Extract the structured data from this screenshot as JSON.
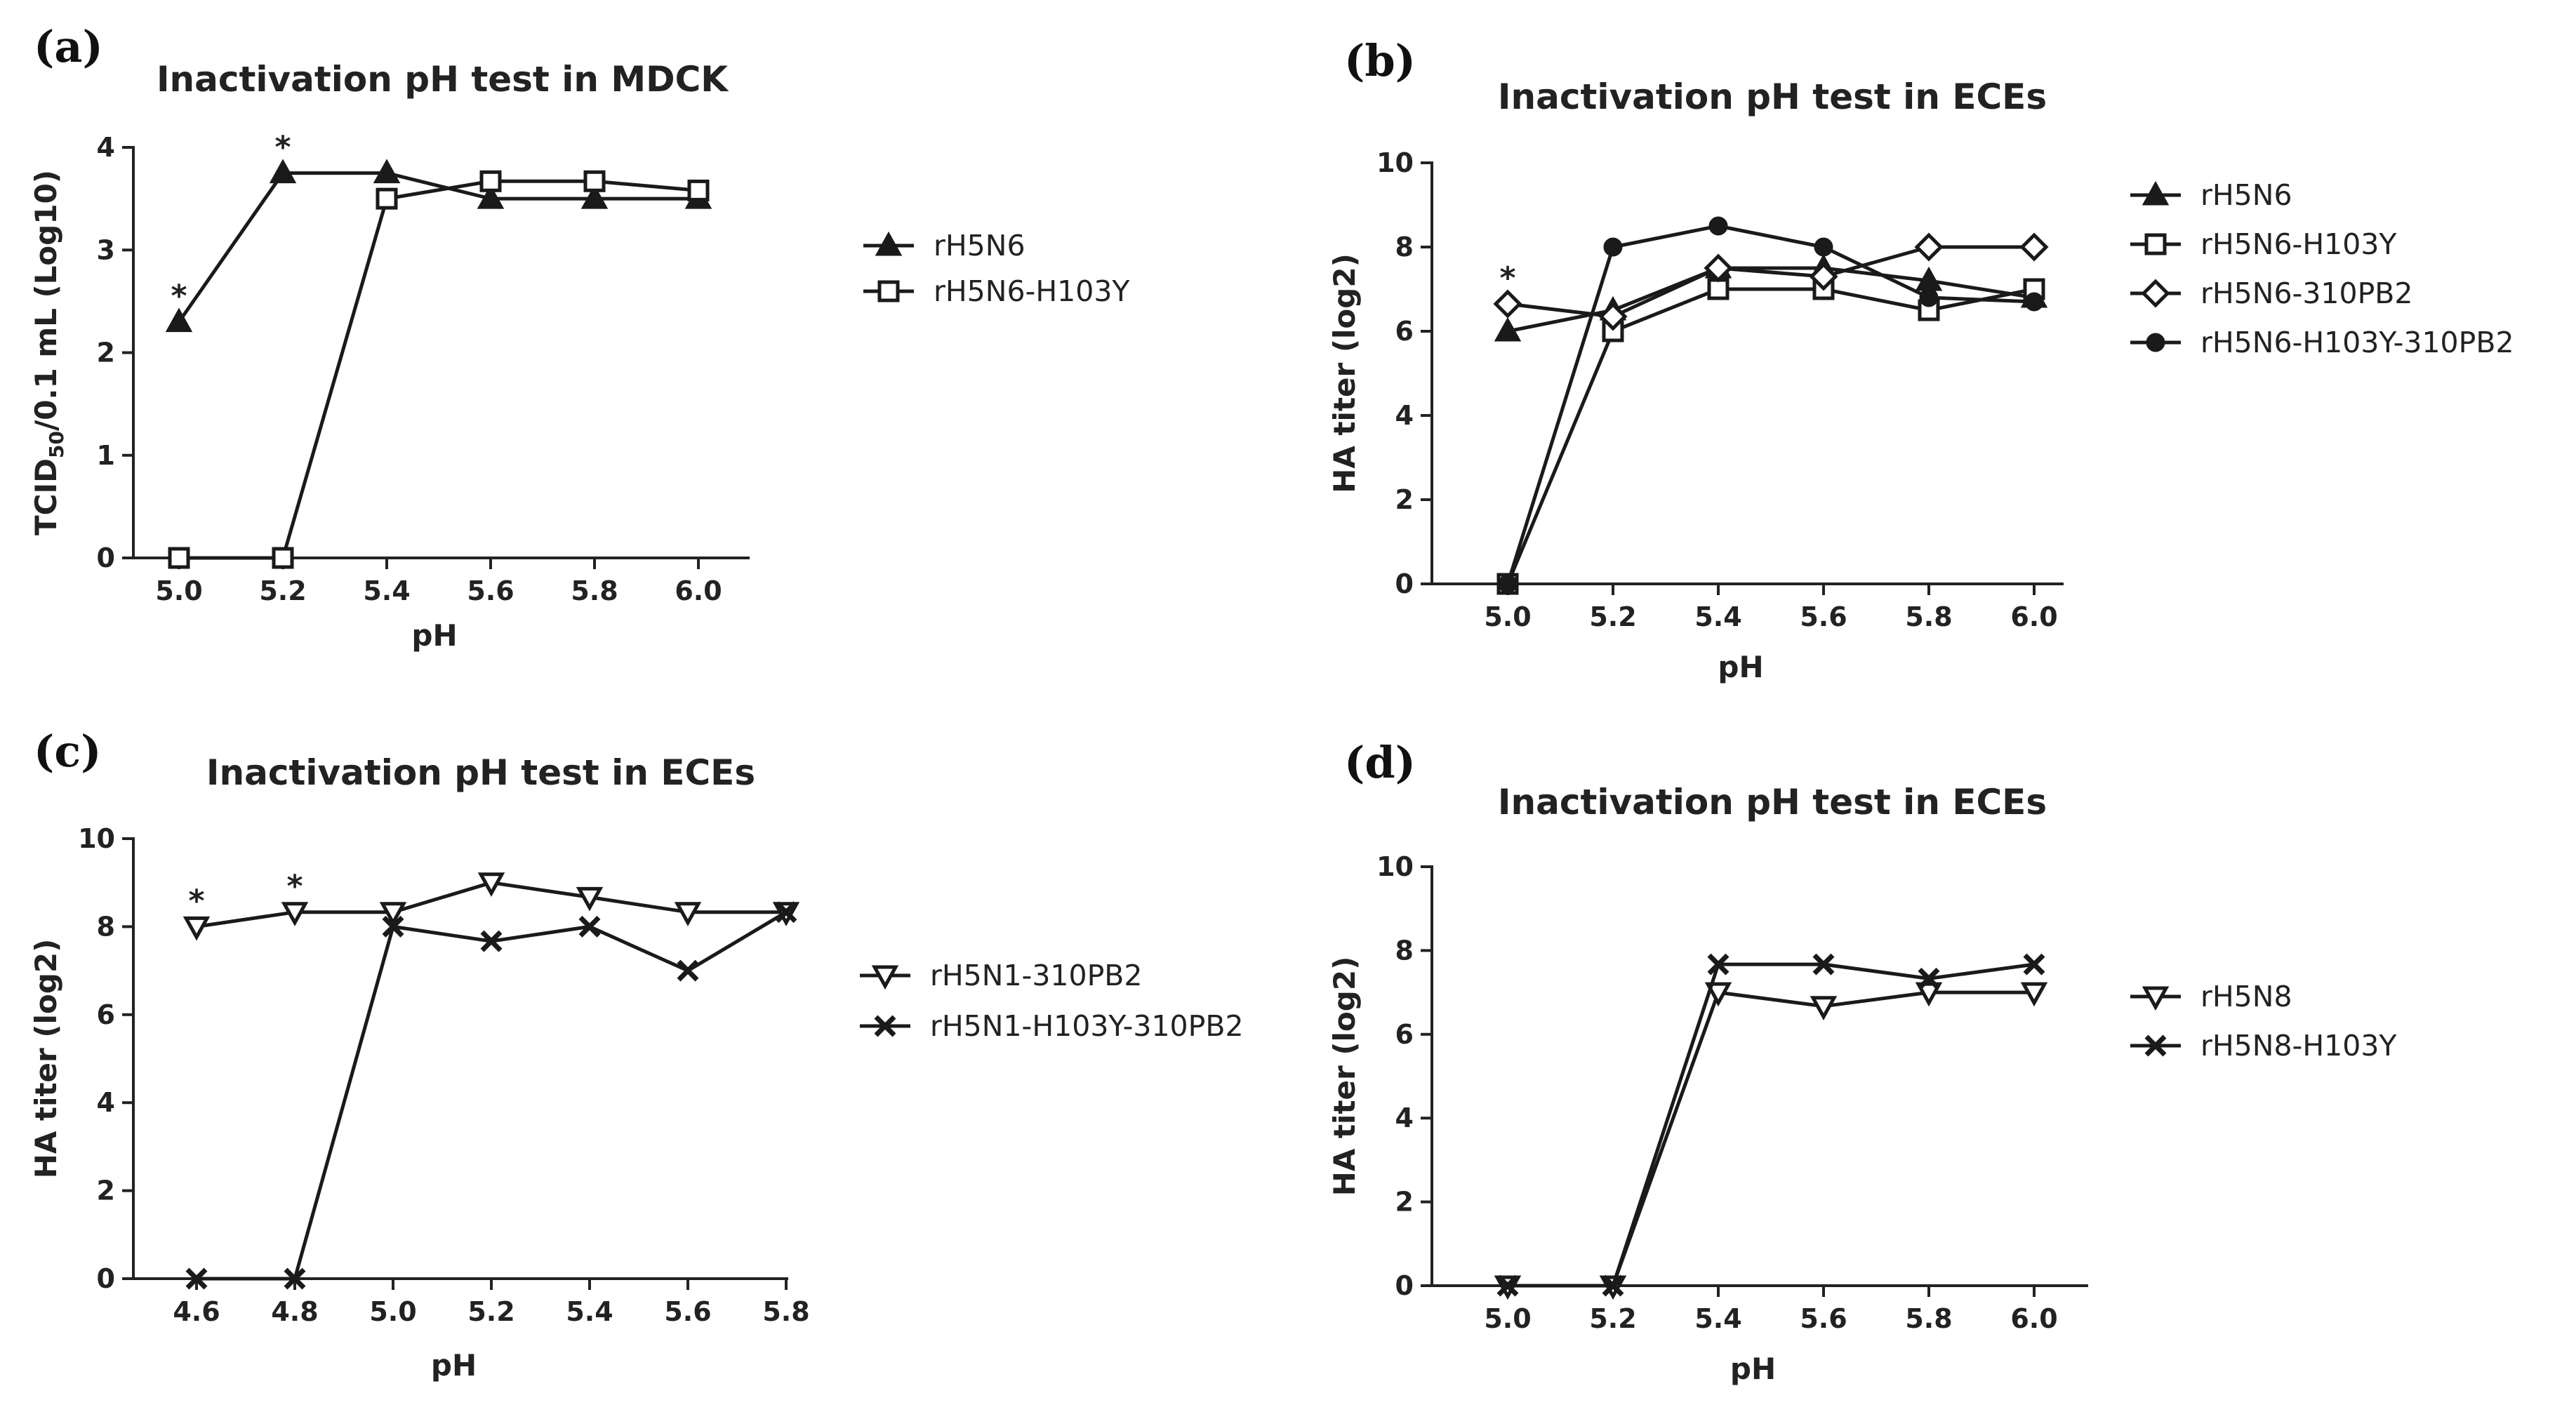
{
  "colors": {
    "ink": "#1a1a1a",
    "background": "#ffffff"
  },
  "chart_data": [
    {
      "panel": "(a)",
      "type": "line",
      "title": "Inactivation pH test in MDCK",
      "xlabel": "pH",
      "ylabel_main": "TCID",
      "ylabel_sub": "50",
      "ylabel_rest": "/0.1 mL (Log10)",
      "ylim": [
        0,
        4
      ],
      "yticks": [
        "0",
        "1",
        "2",
        "3",
        "4"
      ],
      "categories": [
        "5.0",
        "5.2",
        "5.4",
        "5.6",
        "5.8",
        "6.0"
      ],
      "legend_position": "right",
      "series": [
        {
          "name": "rH5N6",
          "marker": "triangle-up",
          "values": [
            2.3,
            3.75,
            3.75,
            3.5,
            3.5,
            3.5
          ]
        },
        {
          "name": "rH5N6-H103Y",
          "marker": "square",
          "values": [
            0,
            0,
            3.5,
            3.67,
            3.67,
            3.58
          ]
        }
      ],
      "annotations": [
        {
          "text": "*",
          "category": "5.0",
          "value": 2.3
        },
        {
          "text": "*",
          "category": "5.2",
          "value": 3.75
        }
      ]
    },
    {
      "panel": "(b)",
      "type": "line",
      "title": "Inactivation pH test in ECEs",
      "xlabel": "pH",
      "ylabel_main": "HA titer (log2)",
      "ylim": [
        0,
        10
      ],
      "yticks": [
        "0",
        "2",
        "4",
        "6",
        "8",
        "10"
      ],
      "categories": [
        "5.0",
        "5.2",
        "5.4",
        "5.6",
        "5.8",
        "6.0"
      ],
      "legend_position": "right",
      "series": [
        {
          "name": "rH5N6",
          "marker": "triangle-up",
          "values": [
            6.0,
            6.5,
            7.5,
            7.5,
            7.2,
            6.8
          ]
        },
        {
          "name": "rH5N6-H103Y",
          "marker": "square",
          "values": [
            0,
            6.0,
            7.0,
            7.0,
            6.5,
            7.0
          ]
        },
        {
          "name": "rH5N6-310PB2",
          "marker": "diamond",
          "values": [
            6.65,
            6.35,
            7.5,
            7.3,
            8.0,
            8.0
          ]
        },
        {
          "name": "rH5N6-H103Y-310PB2",
          "marker": "circle",
          "values": [
            0,
            8.0,
            8.5,
            8.0,
            6.8,
            6.7
          ]
        }
      ],
      "annotations": [
        {
          "text": "*",
          "category": "5.0",
          "value": 6.65
        }
      ]
    },
    {
      "panel": "(c)",
      "type": "line",
      "title": "Inactivation pH test in ECEs",
      "xlabel": "pH",
      "ylabel_main": "HA titer (log2)",
      "ylim": [
        0,
        10
      ],
      "yticks": [
        "0",
        "2",
        "4",
        "6",
        "8",
        "10"
      ],
      "categories": [
        "4.6",
        "4.8",
        "5.0",
        "5.2",
        "5.4",
        "5.6",
        "5.8"
      ],
      "legend_position": "right",
      "series": [
        {
          "name": "rH5N1-310PB2",
          "marker": "triangle-down",
          "values": [
            8.0,
            8.33,
            8.33,
            9.0,
            8.67,
            8.33,
            8.33
          ]
        },
        {
          "name": "rH5N1-H103Y-310PB2",
          "marker": "cross",
          "values": [
            0,
            0,
            8.0,
            7.67,
            8.0,
            7.0,
            8.33
          ]
        }
      ],
      "annotations": [
        {
          "text": "*",
          "category": "4.6",
          "value": 8.0
        },
        {
          "text": "*",
          "category": "4.8",
          "value": 8.33
        }
      ]
    },
    {
      "panel": "(d)",
      "type": "line",
      "title": "Inactivation pH test in ECEs",
      "xlabel": "pH",
      "ylabel_main": "HA titer (log2)",
      "ylim": [
        0,
        10
      ],
      "yticks": [
        "0",
        "2",
        "4",
        "6",
        "8",
        "10"
      ],
      "categories": [
        "5.0",
        "5.2",
        "5.4",
        "5.6",
        "5.8",
        "6.0"
      ],
      "legend_position": "right",
      "series": [
        {
          "name": "rH5N8",
          "marker": "triangle-down",
          "values": [
            0,
            0,
            7.0,
            6.67,
            7.0,
            7.0
          ]
        },
        {
          "name": "rH5N8-H103Y",
          "marker": "cross",
          "values": [
            0,
            0,
            7.67,
            7.67,
            7.33,
            7.67
          ]
        }
      ],
      "annotations": []
    }
  ]
}
